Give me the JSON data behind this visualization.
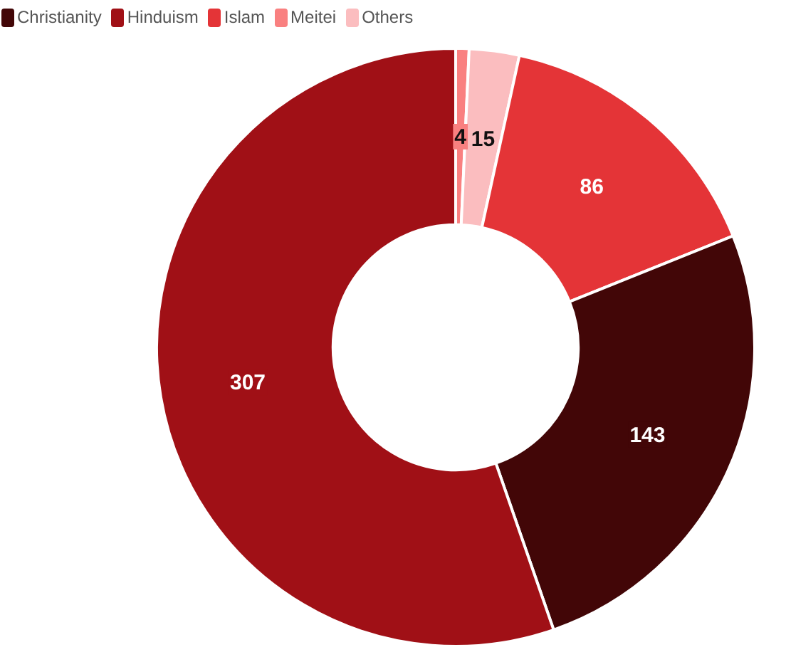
{
  "chart_data": {
    "type": "donut",
    "categories": [
      "Meitei",
      "Others",
      "Islam",
      "Christianity",
      "Hinduism"
    ],
    "values": [
      4,
      15,
      86,
      143,
      307
    ],
    "colors": [
      "#f98080",
      "#fbbdbf",
      "#e43437",
      "#420607",
      "#a01016"
    ],
    "data_labels": true,
    "legend": "top left"
  }
}
